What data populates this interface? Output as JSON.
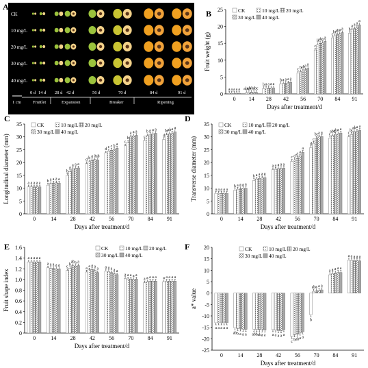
{
  "panel_a": {
    "letter": "A",
    "row_labels": [
      "CK",
      "10 mg/L",
      "20 mg/L",
      "30 mg/L",
      "40 mg/L"
    ],
    "day_labels": [
      "0 d",
      "14 d",
      "28 d",
      "42 d",
      "56 d",
      "70 d",
      "84 d",
      "91 d"
    ],
    "stage_labels": [
      "Fruitlet",
      "Expansion",
      "Breaker",
      "Ripening"
    ],
    "scale_label": "1 cm",
    "colors": {
      "background": "#000000",
      "green": "#9bc23c",
      "yellow_green": "#c9c432",
      "orange": "#f0a020",
      "flesh": "#f4d28a",
      "seed": "#5a3418"
    }
  },
  "chart_data": [
    {
      "panel": "B",
      "type": "bar",
      "categories": [
        "0",
        "14",
        "28",
        "42",
        "56",
        "70",
        "84",
        "91"
      ],
      "xlabel": "Days after treatment/d",
      "ylabel": "Fruit weight (g)",
      "ylim": [
        0,
        25
      ],
      "yticks": [
        0,
        5,
        10,
        15,
        20,
        25
      ],
      "legend": "top-left",
      "series": [
        {
          "name": "CK",
          "values": [
            0.2,
            0.4,
            1.6,
            3.0,
            6.2,
            13.0,
            16.6,
            18.0
          ]
        },
        {
          "name": "10 mg/L",
          "values": [
            0.2,
            0.5,
            1.7,
            3.1,
            6.6,
            14.6,
            17.2,
            19.0
          ]
        },
        {
          "name": "20 mg/L",
          "values": [
            0.2,
            0.5,
            1.7,
            3.2,
            6.8,
            15.0,
            17.6,
            19.4
          ]
        },
        {
          "name": "30 mg/L",
          "values": [
            0.2,
            0.5,
            1.8,
            3.3,
            7.2,
            15.2,
            17.9,
            19.8
          ]
        },
        {
          "name": "40 mg/L",
          "values": [
            0.2,
            0.5,
            1.8,
            3.4,
            7.6,
            15.6,
            18.2,
            20.5
          ]
        }
      ],
      "letters": [
        [
          "a",
          "a",
          "a",
          "a",
          "a"
        ],
        [
          "abc",
          "ab",
          "ab",
          "a",
          "bc"
        ],
        [
          "b",
          "a",
          "a",
          "a",
          "a"
        ],
        [
          "b",
          "a",
          "a",
          "a",
          "a"
        ],
        [
          "c",
          "b",
          "ab",
          "a",
          "a"
        ],
        [
          "c",
          "b",
          "ab",
          "a",
          "a"
        ],
        [
          "c",
          "bc",
          "ab",
          "a",
          "a"
        ],
        [
          "b",
          "a",
          "a",
          "a",
          "a"
        ]
      ]
    },
    {
      "panel": "C",
      "type": "bar",
      "categories": [
        "0",
        "14",
        "28",
        "42",
        "56",
        "70",
        "84",
        "91"
      ],
      "xlabel": "Days after treatment/d",
      "ylabel": "Longitudinal diameter (mm)",
      "ylim": [
        0,
        35
      ],
      "yticks": [
        0,
        5,
        10,
        15,
        20,
        25,
        30,
        35
      ],
      "legend": "top-left",
      "series": [
        {
          "name": "CK",
          "values": [
            10.5,
            11.2,
            15.0,
            19.6,
            23.8,
            26.5,
            28.6,
            29.0
          ]
        },
        {
          "name": "10 mg/L",
          "values": [
            10.5,
            11.8,
            16.5,
            20.3,
            24.5,
            28.0,
            30.5,
            30.8
          ]
        },
        {
          "name": "20 mg/L",
          "values": [
            10.5,
            12.0,
            17.5,
            21.0,
            24.8,
            30.0,
            31.0,
            31.2
          ]
        },
        {
          "name": "30 mg/L",
          "values": [
            10.5,
            12.1,
            17.8,
            21.2,
            25.0,
            30.4,
            31.2,
            31.5
          ]
        },
        {
          "name": "40 mg/L",
          "values": [
            10.5,
            12.0,
            17.9,
            21.0,
            25.6,
            30.6,
            31.4,
            32.0
          ]
        }
      ],
      "letters": [
        [
          "a",
          "a",
          "a",
          "a",
          "a"
        ],
        [
          "b",
          "a",
          "a",
          "a",
          "a"
        ],
        [
          "b",
          "a",
          "a",
          "a",
          "a"
        ],
        [
          "d",
          "b",
          "a",
          "a",
          "ab"
        ],
        [
          "d",
          "c",
          "c",
          "b",
          "a"
        ],
        [
          "c",
          "b",
          "a",
          "a",
          "a"
        ],
        [
          "c",
          "b",
          "a",
          "a",
          "a"
        ],
        [
          "d",
          "bc",
          "ab",
          "a",
          "a"
        ]
      ]
    },
    {
      "panel": "D",
      "type": "bar",
      "categories": [
        "0",
        "14",
        "28",
        "42",
        "56",
        "70",
        "84",
        "91"
      ],
      "xlabel": "Days after treatment/d",
      "ylabel": "Transverse diameter (mm)",
      "ylim": [
        0,
        35
      ],
      "yticks": [
        0,
        5,
        10,
        15,
        20,
        25,
        30,
        35
      ],
      "legend": "top-left",
      "series": [
        {
          "name": "CK",
          "values": [
            8.0,
            9.2,
            13.0,
            17.2,
            20.5,
            25.8,
            29.5,
            30.0
          ]
        },
        {
          "name": "10 mg/L",
          "values": [
            8.0,
            9.6,
            13.6,
            17.4,
            21.0,
            27.5,
            30.5,
            31.0
          ]
        },
        {
          "name": "20 mg/L",
          "values": [
            8.0,
            9.8,
            13.8,
            17.6,
            21.6,
            29.5,
            31.0,
            32.0
          ]
        },
        {
          "name": "30 mg/L",
          "values": [
            8.0,
            9.9,
            14.0,
            17.7,
            22.5,
            30.0,
            31.2,
            32.3
          ]
        },
        {
          "name": "40 mg/L",
          "values": [
            8.0,
            10.0,
            14.1,
            17.8,
            24.0,
            30.2,
            31.5,
            32.5
          ]
        }
      ],
      "letters": [
        [
          "a",
          "a",
          "a",
          "a",
          "a"
        ],
        [
          "b",
          "a",
          "a",
          "a",
          "a"
        ],
        [
          "b",
          "a",
          "a",
          "a",
          "a"
        ],
        [
          "a",
          "a",
          "a",
          "a",
          "a"
        ],
        [
          "c",
          "d",
          "d",
          "a",
          "a"
        ],
        [
          "d",
          "c",
          "bc",
          "a",
          "a"
        ],
        [
          "c",
          "abc",
          "ab",
          "a",
          "a"
        ],
        [
          "c",
          "bc",
          "ab",
          "a",
          "a"
        ]
      ]
    },
    {
      "panel": "E",
      "type": "bar",
      "categories": [
        "0",
        "14",
        "28",
        "42",
        "56",
        "70",
        "84",
        "91"
      ],
      "xlabel": "Days after treatment/d",
      "ylabel": "Fruit shape index",
      "ylim": [
        0,
        1.6
      ],
      "yticks": [
        0,
        0.2,
        0.4,
        0.6,
        0.8,
        1.0,
        1.2,
        1.4,
        1.6
      ],
      "legend": "top-right",
      "series": [
        {
          "name": "CK",
          "values": [
            1.33,
            1.22,
            1.17,
            1.14,
            1.16,
            1.02,
            0.94,
            0.96
          ]
        },
        {
          "name": "10 mg/L",
          "values": [
            1.33,
            1.21,
            1.21,
            1.18,
            1.15,
            1.01,
            0.96,
            0.97
          ]
        },
        {
          "name": "20 mg/L",
          "values": [
            1.33,
            1.21,
            1.26,
            1.19,
            1.13,
            1.01,
            0.97,
            0.97
          ]
        },
        {
          "name": "30 mg/L",
          "values": [
            1.33,
            1.2,
            1.25,
            1.17,
            1.11,
            1.0,
            0.97,
            0.97
          ]
        },
        {
          "name": "40 mg/L",
          "values": [
            1.33,
            1.2,
            1.26,
            1.13,
            1.09,
            1.01,
            0.97,
            0.97
          ]
        }
      ],
      "letters": [
        [
          "a",
          "a",
          "a",
          "a",
          "a"
        ],
        [
          "a",
          "a",
          "a",
          "a",
          "a"
        ],
        [
          "c",
          "b",
          "ab",
          "a",
          "a"
        ],
        [
          "a",
          "a",
          "a",
          "a",
          "a"
        ],
        [
          "a",
          "a",
          "a",
          "a",
          "a"
        ],
        [
          "a",
          "a",
          "a",
          "a",
          "a"
        ],
        [
          "a",
          "a",
          "a",
          "a",
          "a"
        ],
        [
          "a",
          "a",
          "a",
          "a",
          "a"
        ]
      ]
    },
    {
      "panel": "F",
      "type": "bar",
      "categories": [
        "0",
        "14",
        "28",
        "42",
        "56",
        "70",
        "84",
        "91"
      ],
      "xlabel": "Days after treatment/d",
      "ylabel": "a* value",
      "ylim": [
        -25,
        20
      ],
      "yticks": [
        -25,
        -20,
        -15,
        -10,
        -5,
        0,
        5,
        10,
        15,
        20
      ],
      "legend": "top-center",
      "series": [
        {
          "name": "CK",
          "values": [
            -13,
            -15.2,
            -15.8,
            -16,
            -19,
            -9.5,
            8.0,
            14.5
          ]
        },
        {
          "name": "10 mg/L",
          "values": [
            -13,
            -15.5,
            -15.9,
            -16.2,
            -18.3,
            0.8,
            8.5,
            14.3
          ]
        },
        {
          "name": "20 mg/L",
          "values": [
            -13,
            -15.7,
            -16.0,
            -16.4,
            -18.0,
            1.0,
            8.8,
            14.2
          ]
        },
        {
          "name": "30 mg/L",
          "values": [
            -13,
            -15.8,
            -16.1,
            -16.5,
            -17.5,
            1.2,
            9.0,
            14.2
          ]
        },
        {
          "name": "40 mg/L",
          "values": [
            -13,
            -15.9,
            -16.2,
            -16.0,
            -17.0,
            1.4,
            9.0,
            14.1
          ]
        }
      ],
      "letters": [
        [
          "a",
          "a",
          "a",
          "a",
          "a"
        ],
        [
          "ab",
          "b",
          "a",
          "a",
          "a"
        ],
        [
          "ab",
          "b",
          "ab",
          "a",
          "a"
        ],
        [
          "a",
          "a",
          "a",
          "a",
          "a"
        ],
        [
          "c",
          "b",
          "ab",
          "a",
          "a"
        ],
        [
          "b",
          "ab",
          "a",
          "a",
          "a"
        ],
        [
          "a",
          "a",
          "a",
          "a",
          "a"
        ],
        [
          "a",
          "a",
          "a",
          "a",
          "a"
        ]
      ]
    }
  ]
}
